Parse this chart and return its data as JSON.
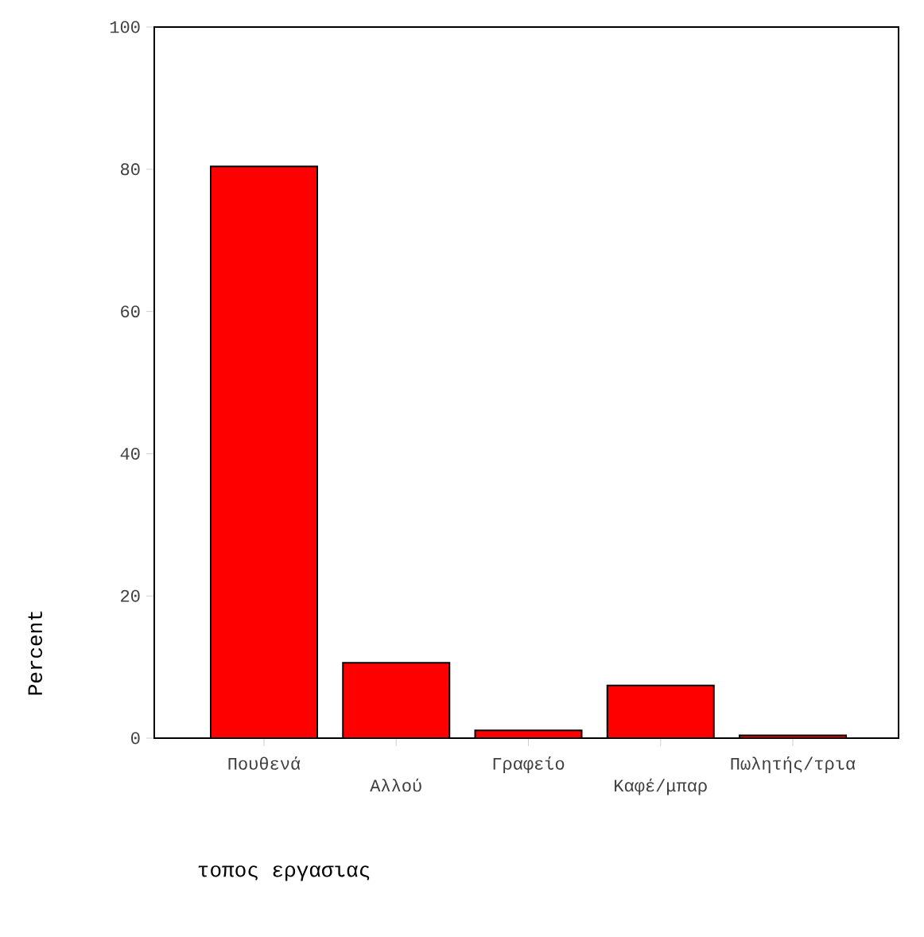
{
  "chart_data": {
    "type": "bar",
    "xlabel": "τοπος εργασιας",
    "ylabel": "Percent",
    "categories": [
      "Πουθενά",
      "Αλλού",
      "Γραφείο",
      "Καφέ/μπαρ",
      "Πωλητής/τρια"
    ],
    "values": [
      80.4,
      10.6,
      1.1,
      7.4,
      0.4
    ],
    "color": "#ff0000",
    "ylim": [
      0,
      100
    ],
    "yticks": [
      0,
      20,
      40,
      60,
      80,
      100
    ]
  }
}
